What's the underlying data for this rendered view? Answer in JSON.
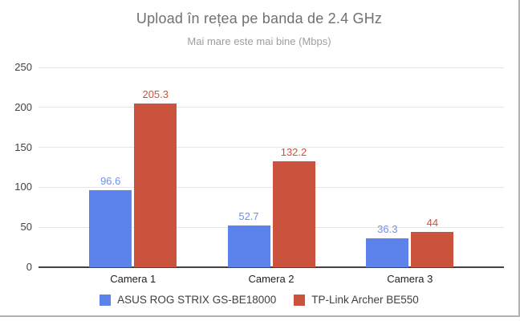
{
  "chart_data": {
    "type": "bar",
    "title": "Upload în rețea pe banda de 2.4 GHz",
    "subtitle": "Mai mare este mai bine (Mbps)",
    "unit": "Mbps",
    "categories": [
      "Camera 1",
      "Camera 2",
      "Camera 3"
    ],
    "series": [
      {
        "name": "ASUS ROG STRIX GS-BE18000",
        "color": "#5c82ec",
        "label_color": "#6d90f0",
        "values": [
          96.6,
          52.7,
          36.3
        ]
      },
      {
        "name": "TP-Link Archer BE550",
        "color": "#cb523d",
        "label_color": "#cb523d",
        "values": [
          205.3,
          132.2,
          44
        ]
      }
    ],
    "ylim": [
      0,
      250
    ],
    "yticks": [
      0,
      50,
      100,
      150,
      200,
      250
    ],
    "grid": true,
    "legend_position": "bottom",
    "colors": {
      "gridline": "#e6e6e6",
      "axis_line": "#424242",
      "tick_label": "#424242",
      "category_label": "#1f1f1f",
      "legend_text": "#3c4043",
      "title_text": "#707070",
      "subtitle_text": "#9e9e9e",
      "frame_border": "#b2b2b2",
      "background": "#ffffff"
    }
  }
}
